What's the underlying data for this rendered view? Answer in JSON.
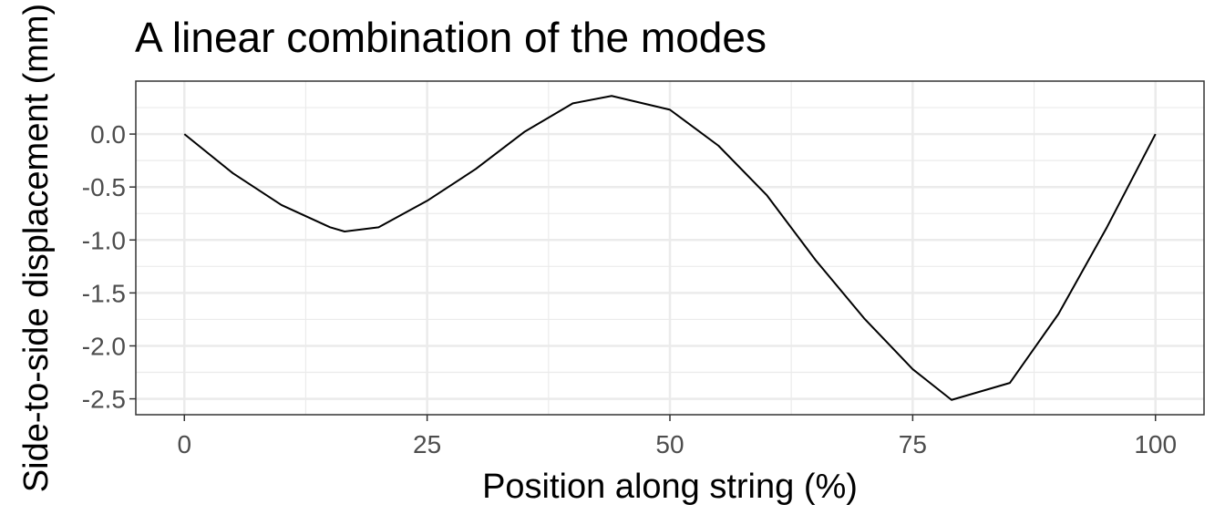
{
  "chart_data": {
    "type": "line",
    "title": "A linear combination of the modes",
    "x_label": "Position along string (%)",
    "y_label": "Side-to-side displacement (mm)",
    "x": [
      0,
      5,
      10,
      15,
      16.5,
      20,
      25,
      30,
      35,
      40,
      44,
      50,
      55,
      60,
      65,
      70,
      75,
      79,
      85,
      90,
      95,
      100
    ],
    "series": [
      {
        "name": "displacement",
        "color": "#000000",
        "values": [
          0,
          -0.37,
          -0.67,
          -0.88,
          -0.92,
          -0.88,
          -0.63,
          -0.33,
          0.02,
          0.29,
          0.36,
          0.23,
          -0.11,
          -0.58,
          -1.19,
          -1.74,
          -2.22,
          -2.51,
          -2.35,
          -1.7,
          -0.88,
          0
        ]
      }
    ],
    "xlim": [
      -5,
      105
    ],
    "ylim": [
      -2.65,
      0.5
    ],
    "xticks": [
      0,
      25,
      50,
      75,
      100
    ],
    "yticks": [
      {
        "value": 0,
        "label": "0.0"
      },
      {
        "value": -0.5,
        "label": "-0.5"
      },
      {
        "value": -1,
        "label": "-1.0"
      },
      {
        "value": -1.5,
        "label": "-1.5"
      },
      {
        "value": -2,
        "label": "-2.0"
      },
      {
        "value": -2.5,
        "label": "-2.5"
      }
    ],
    "grid": true
  }
}
